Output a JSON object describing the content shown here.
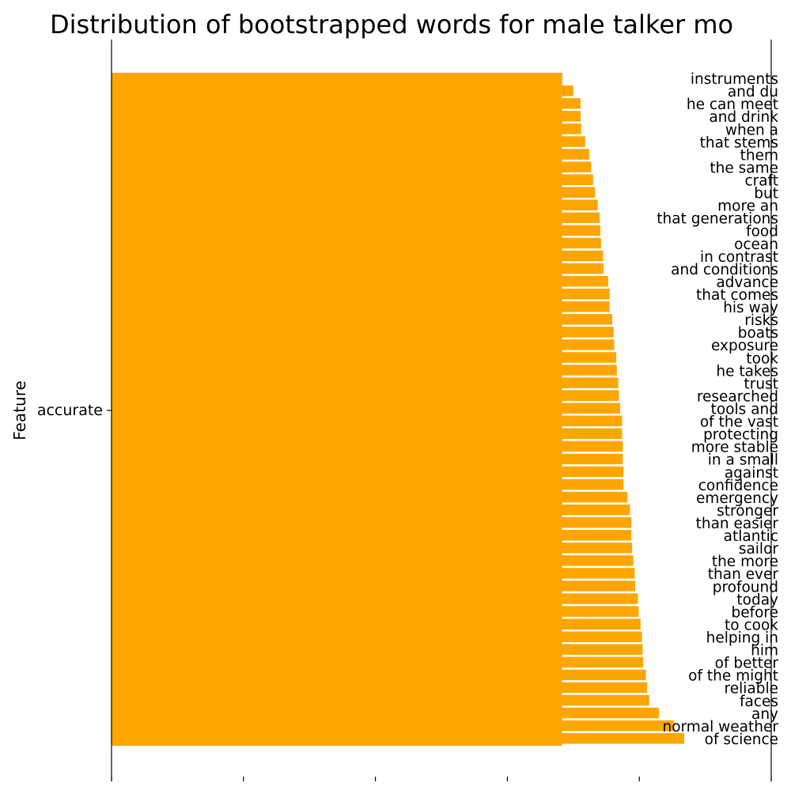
{
  "chart_data": {
    "type": "bar",
    "orientation": "horizontal",
    "title": "Distribution of bootstrapped words for male talker mo",
    "xlabel": "",
    "ylabel": "Feature",
    "y_tick_labels": [
      "accurate"
    ],
    "xlim": [
      0,
      1
    ],
    "grid": false,
    "bar_color": "#FFA500",
    "series": [
      {
        "name": "accurate",
        "value": 0.683,
        "overlay": [
          {
            "label": "instruments",
            "value": 0.683
          },
          {
            "label": "and du",
            "value": 0.7
          },
          {
            "label": "he can meet",
            "value": 0.711
          },
          {
            "label": "and drink",
            "value": 0.711
          },
          {
            "label": "when a",
            "value": 0.712
          },
          {
            "label": "that stems",
            "value": 0.718
          },
          {
            "label": "them",
            "value": 0.724
          },
          {
            "label": "the same",
            "value": 0.727
          },
          {
            "label": "craft",
            "value": 0.73
          },
          {
            "label": "but",
            "value": 0.733
          },
          {
            "label": "more an",
            "value": 0.737
          },
          {
            "label": "that generations",
            "value": 0.74
          },
          {
            "label": "food",
            "value": 0.741
          },
          {
            "label": "ocean",
            "value": 0.742
          },
          {
            "label": "in contrast",
            "value": 0.745
          },
          {
            "label": "and conditions",
            "value": 0.746
          },
          {
            "label": "advance",
            "value": 0.753
          },
          {
            "label": "that comes",
            "value": 0.755
          },
          {
            "label": "his way",
            "value": 0.755
          },
          {
            "label": "risks",
            "value": 0.759
          },
          {
            "label": "boats",
            "value": 0.761
          },
          {
            "label": "exposure",
            "value": 0.762
          },
          {
            "label": "took",
            "value": 0.765
          },
          {
            "label": "he takes",
            "value": 0.766
          },
          {
            "label": "trust",
            "value": 0.768
          },
          {
            "label": "researched",
            "value": 0.769
          },
          {
            "label": "tools and",
            "value": 0.771
          },
          {
            "label": "of the vast",
            "value": 0.774
          },
          {
            "label": "protecting",
            "value": 0.774
          },
          {
            "label": "more stable",
            "value": 0.775
          },
          {
            "label": "in a small",
            "value": 0.775
          },
          {
            "label": "against",
            "value": 0.776
          },
          {
            "label": "confidence",
            "value": 0.776
          },
          {
            "label": "emergency",
            "value": 0.782
          },
          {
            "label": "stronger",
            "value": 0.786
          },
          {
            "label": "than easier",
            "value": 0.788
          },
          {
            "label": "atlantic",
            "value": 0.788
          },
          {
            "label": "sailor",
            "value": 0.789
          },
          {
            "label": "the more",
            "value": 0.791
          },
          {
            "label": "than ever",
            "value": 0.793
          },
          {
            "label": "profound",
            "value": 0.794
          },
          {
            "label": "today",
            "value": 0.798
          },
          {
            "label": "before",
            "value": 0.799
          },
          {
            "label": "to cook",
            "value": 0.802
          },
          {
            "label": "helping in",
            "value": 0.804
          },
          {
            "label": "him",
            "value": 0.805
          },
          {
            "label": "of better",
            "value": 0.806
          },
          {
            "label": "of the might",
            "value": 0.81
          },
          {
            "label": "reliable",
            "value": 0.812
          },
          {
            "label": "faces",
            "value": 0.815
          },
          {
            "label": "any",
            "value": 0.83
          },
          {
            "label": "normal weather",
            "value": 0.853
          },
          {
            "label": "of science",
            "value": 0.868
          }
        ]
      }
    ]
  }
}
